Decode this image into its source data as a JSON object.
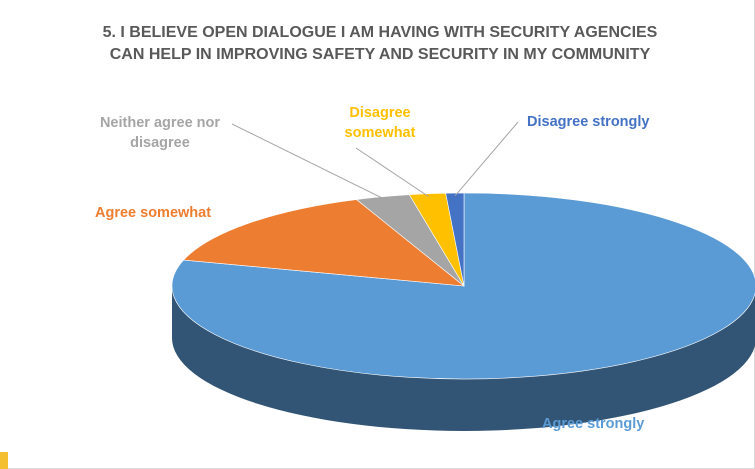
{
  "colors": {
    "agree_strongly": "#5b9bd5",
    "agree_somewhat": "#ed7d31",
    "neither": "#a5a5a5",
    "disagree_somewhat": "#ffc000",
    "disagree_strongly": "#4472c4",
    "title": "#595959"
  },
  "chart_data": {
    "type": "pie",
    "style": "3d",
    "title": "5. I BELIEVE OPEN DIALOGUE I AM HAVING WITH SECURITY AGENCIES\nCAN HELP IN IMPROVING SAFETY AND SECURITY IN MY COMMUNITY",
    "legend": "none",
    "slices": [
      {
        "label": "Agree strongly",
        "value": 79.5,
        "color": "#5b9bd5"
      },
      {
        "label": "Agree somewhat",
        "value": 14.5,
        "color": "#ed7d31"
      },
      {
        "label": "Neither agree nor\ndisagree",
        "value": 3.0,
        "color": "#a5a5a5"
      },
      {
        "label": "Disagree\nsomewhat",
        "value": 2.0,
        "color": "#ffc000"
      },
      {
        "label": "Disagree strongly",
        "value": 1.0,
        "color": "#4472c4"
      }
    ]
  }
}
